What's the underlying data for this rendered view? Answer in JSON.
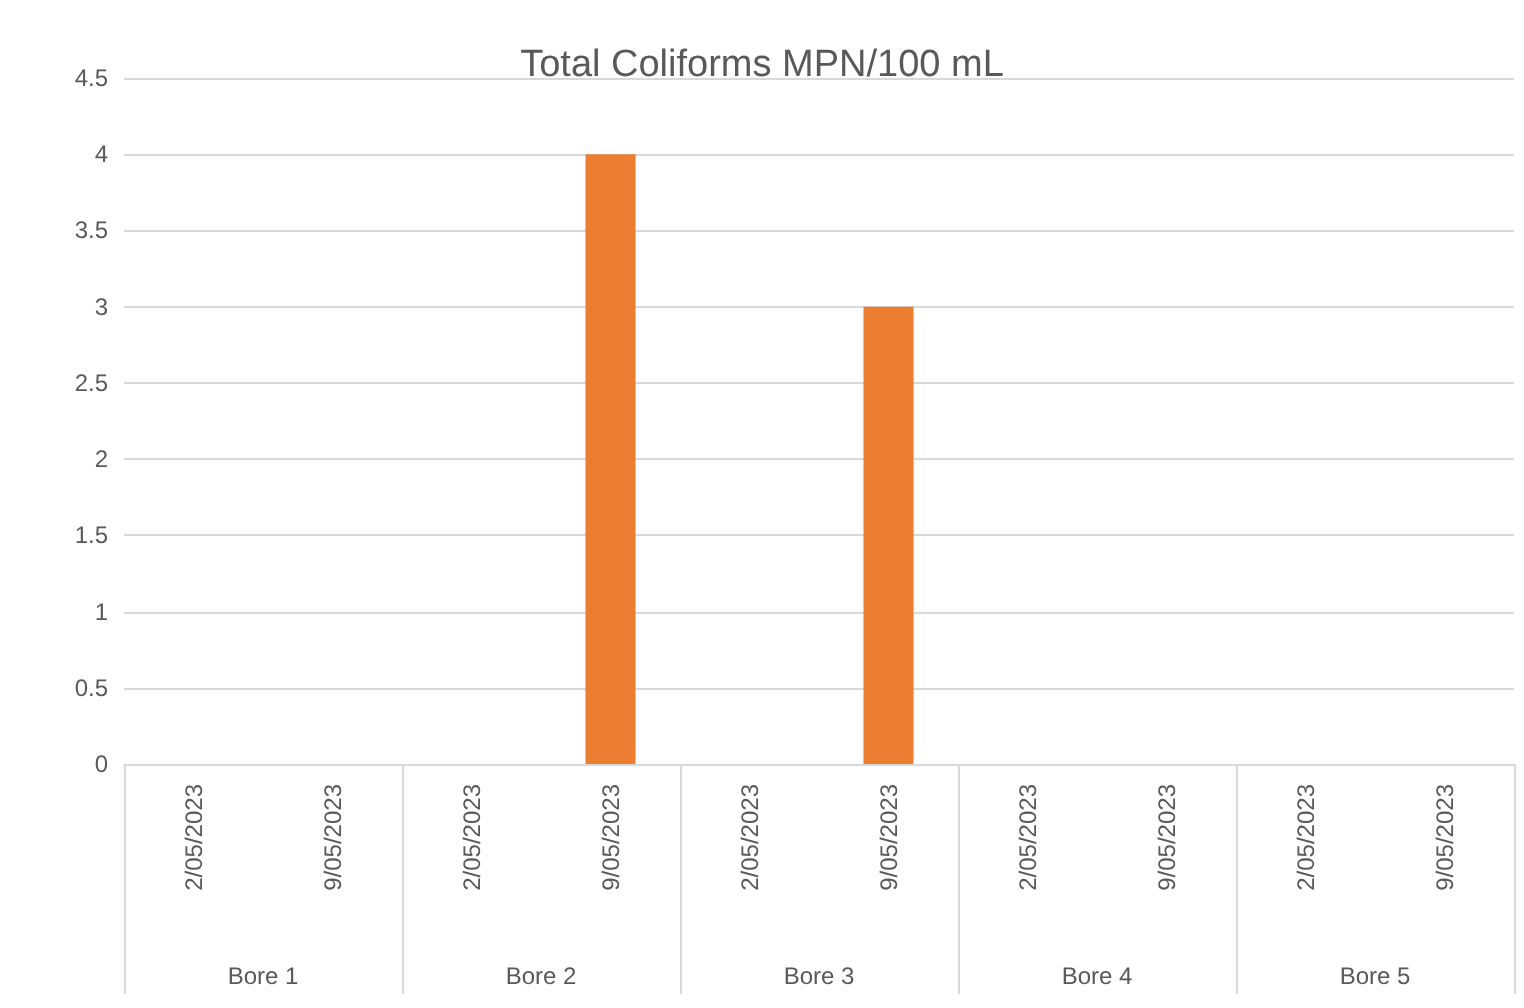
{
  "chart_data": {
    "type": "bar",
    "title": "Total Coliforms MPN/100 mL",
    "categories": [
      "2/05/2023",
      "9/05/2023",
      "2/05/2023",
      "9/05/2023",
      "2/05/2023",
      "9/05/2023",
      "2/05/2023",
      "9/05/2023",
      "2/05/2023",
      "9/05/2023"
    ],
    "values": [
      0,
      0,
      0,
      4,
      0,
      3,
      0,
      0,
      0,
      0
    ],
    "color": "#ed7d31",
    "ylim": [
      0,
      4.5
    ],
    "yticks": [
      0,
      0.5,
      1,
      1.5,
      2,
      2.5,
      3,
      3.5,
      4,
      4.5
    ],
    "grid": "y",
    "annotations": [
      "Bore 1",
      "Bore 2",
      "Bore 3",
      "Bore 4",
      "Bore 5"
    ]
  }
}
